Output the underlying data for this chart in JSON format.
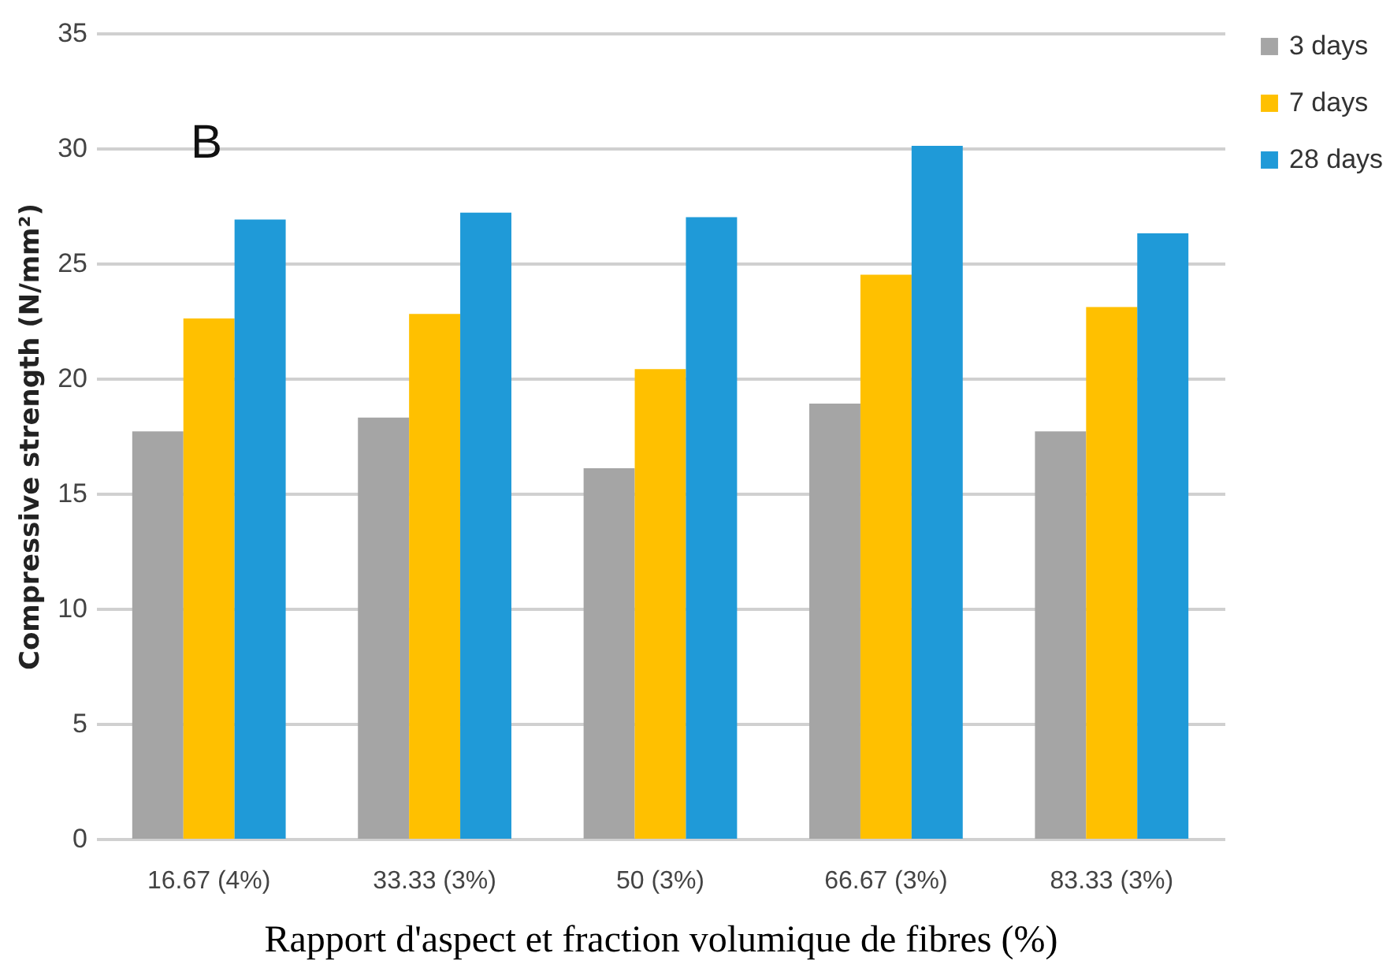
{
  "chart_data": {
    "type": "bar",
    "xlabel": "Rapport d'aspect et fraction volumique de fibres (%)",
    "ylabel": "Compressive strength (N/mm²)",
    "annotations": [
      "B"
    ],
    "categories": [
      "16.67 (4%)",
      "33.33 (3%)",
      "50 (3%)",
      "66.67 (3%)",
      "83.33 (3%)"
    ],
    "series": [
      {
        "name": "3 days",
        "color": "#a5a5a5",
        "values": [
          17.7,
          18.3,
          16.1,
          18.9,
          17.7
        ]
      },
      {
        "name": "7 days",
        "color": "#ffc000",
        "values": [
          22.6,
          22.8,
          20.4,
          24.5,
          23.1
        ]
      },
      {
        "name": "28 days",
        "color": "#1f9ad8",
        "values": [
          26.9,
          27.2,
          27.0,
          30.1,
          26.3
        ]
      }
    ],
    "ylim": [
      0,
      35
    ],
    "yticks": [
      0,
      5,
      10,
      15,
      20,
      25,
      30,
      35
    ],
    "grid": "y",
    "legend": "right"
  }
}
